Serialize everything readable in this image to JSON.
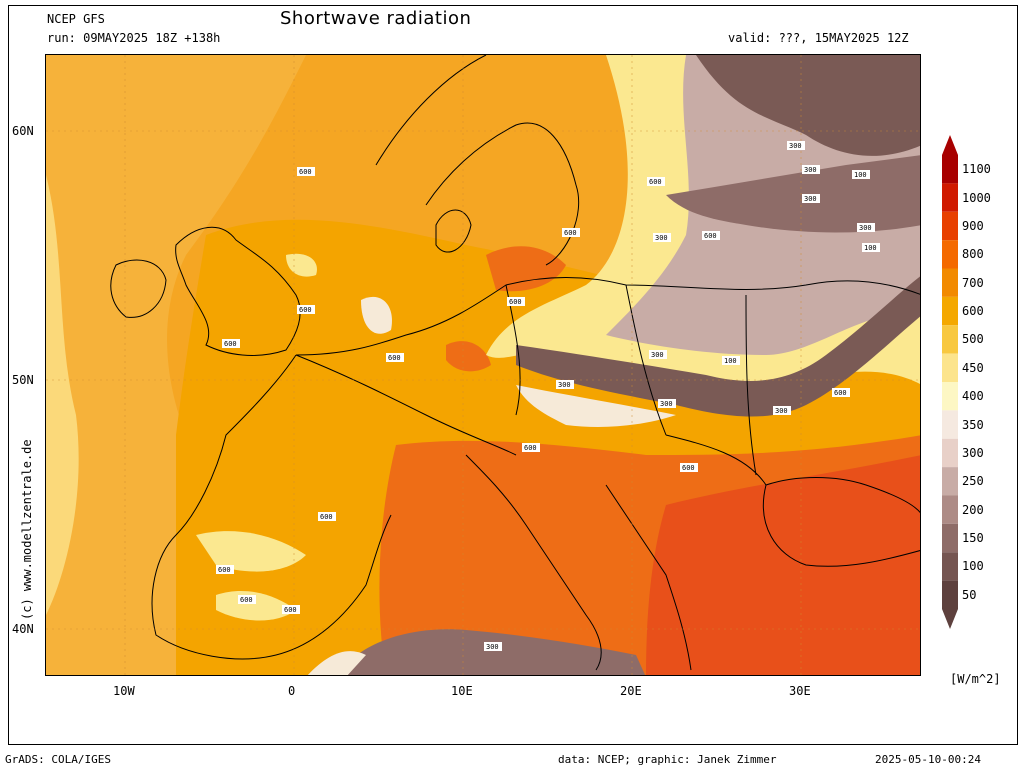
{
  "header": {
    "model": "NCEP GFS",
    "run": "run: 09MAY2025 18Z +138h",
    "title": "Shortwave radiation",
    "valid": "valid: ???, 15MAY2025 12Z"
  },
  "axes": {
    "lat_labels": [
      "60N",
      "50N",
      "40N"
    ],
    "lon_labels": [
      "10W",
      "0",
      "10E",
      "20E",
      "30E"
    ]
  },
  "watermark": "(c) www.modellzentrale.de",
  "colorbar": {
    "labels": [
      "1100",
      "1000",
      "900",
      "800",
      "700",
      "600",
      "500",
      "450",
      "400",
      "350",
      "300",
      "250",
      "200",
      "150",
      "100",
      "50"
    ],
    "colors": [
      "#a80000",
      "#d01a00",
      "#e84000",
      "#f46a00",
      "#f28a00",
      "#f4a800",
      "#f8c840",
      "#fce48c",
      "#fdf7c4",
      "#f5e9e0",
      "#e8d0c8",
      "#c8aca6",
      "#ad8b86",
      "#8e6c68",
      "#755551",
      "#5e413e"
    ],
    "unit": "[W/m^2]"
  },
  "map": {
    "colors": {
      "ocean_orange": "#f5a623",
      "land_orange": "#f4a400",
      "dark_orange": "#ee6d16",
      "red_orange": "#e8501a",
      "light_yellow": "#fbe890",
      "pale": "#f6ead8",
      "brown_light": "#c8aca6",
      "brown_dark": "#7a5a55"
    },
    "contour_labels": [
      "600",
      "600",
      "600",
      "600",
      "600",
      "600",
      "600",
      "600",
      "600",
      "600",
      "600",
      "600",
      "600",
      "600",
      "600",
      "300",
      "300",
      "300",
      "300",
      "300",
      "300",
      "300",
      "300",
      "300",
      "300",
      "100",
      "100",
      "100"
    ]
  },
  "footer": {
    "left": "GrADS: COLA/IGES",
    "middle": "data: NCEP; graphic: Janek Zimmer",
    "right": "2025-05-10-00:24"
  }
}
